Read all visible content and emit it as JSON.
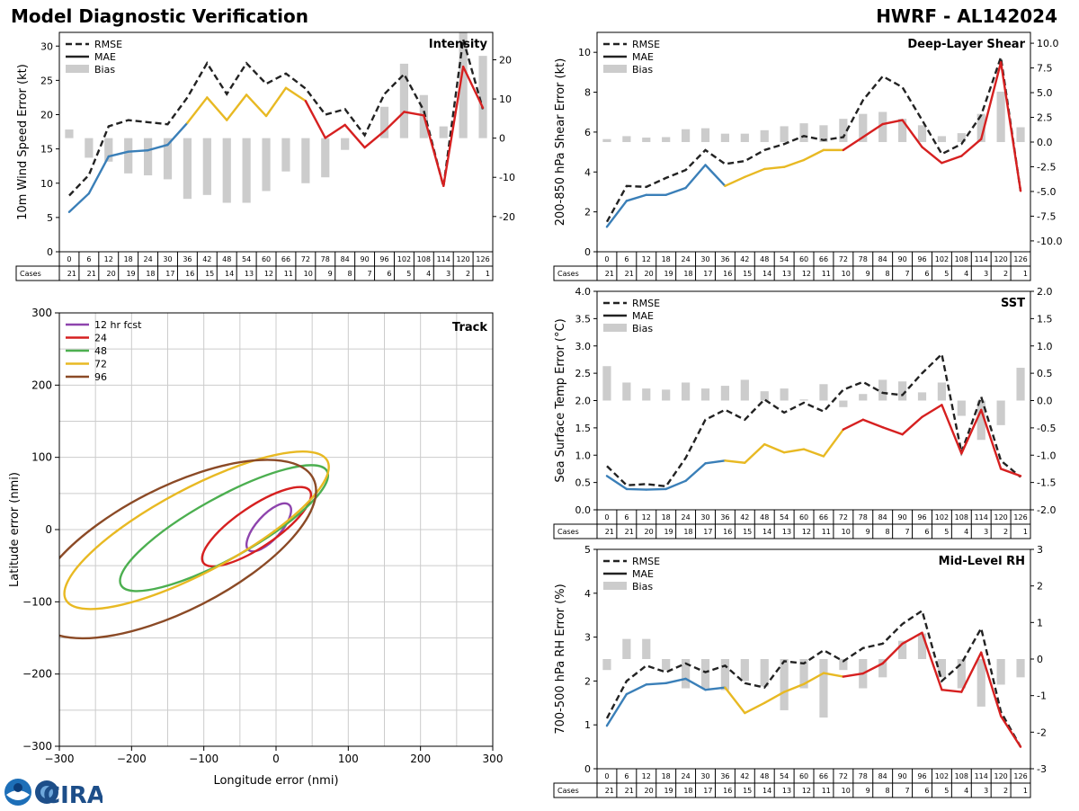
{
  "header": {
    "title": "Model Diagnostic Verification",
    "subtitle": "HWRF - AL142024"
  },
  "logo": {
    "noaa": "NOAA",
    "cira": "CIRA"
  },
  "style": {
    "rmse_color": "#222222",
    "bias_color": "#cccccc",
    "leg_rmse": "RMSE",
    "leg_mae": "MAE",
    "leg_bias": "Bias",
    "cases_label": "Cases",
    "segment_colors": [
      "#3a7fb8",
      "#e8b923",
      "#d62020"
    ]
  },
  "chart_data": [
    {
      "type": "line",
      "id": "intensity",
      "title": "Intensity",
      "ylabel": "10m Wind Speed Error (kt)",
      "ylim": [
        0,
        32
      ],
      "yticks": [
        0,
        5,
        10,
        15,
        20,
        25,
        30
      ],
      "y2lim": [
        -29,
        27
      ],
      "y2ticks": [
        -20,
        -10,
        0,
        10,
        20
      ],
      "x": [
        0,
        6,
        12,
        18,
        24,
        30,
        36,
        42,
        48,
        54,
        60,
        66,
        72,
        78,
        84,
        90,
        96,
        102,
        108,
        114,
        120,
        126
      ],
      "cases": [
        21,
        21,
        20,
        19,
        18,
        17,
        16,
        15,
        14,
        13,
        12,
        11,
        10,
        9,
        8,
        7,
        6,
        5,
        4,
        3,
        2,
        1
      ],
      "rmse": [
        8.2,
        11.2,
        18.3,
        19.2,
        18.9,
        18.6,
        22.5,
        27.5,
        23.0,
        27.5,
        24.5,
        26.0,
        23.8,
        20.0,
        20.8,
        17.0,
        23.0,
        25.9,
        20.6,
        9.5,
        31.0,
        20.8
      ],
      "mae": [
        5.8,
        8.5,
        13.9,
        14.6,
        14.8,
        15.6,
        18.8,
        22.5,
        19.2,
        22.9,
        19.8,
        23.9,
        22.0,
        16.6,
        18.5,
        15.2,
        17.6,
        20.4,
        19.9,
        9.6,
        27.0,
        21.0
      ],
      "bias": [
        2.2,
        -5.0,
        -6.0,
        -9.0,
        -9.5,
        -10.5,
        -15.5,
        -14.5,
        -16.5,
        -16.5,
        -13.5,
        -8.5,
        -11.5,
        -10.0,
        -3.0,
        0,
        8.0,
        19.0,
        11.0,
        3.0,
        27.0,
        21.0
      ]
    },
    {
      "type": "line",
      "id": "shear",
      "title": "Deep-Layer Shear",
      "ylabel": "200-850 hPa Shear Error (kt)",
      "ylim": [
        0,
        11
      ],
      "yticks": [
        0,
        2,
        4,
        6,
        8,
        10
      ],
      "y2lim": [
        -11.1,
        11.1
      ],
      "y2ticks": [
        -10.0,
        -7.5,
        -5.0,
        -2.5,
        0.0,
        2.5,
        5.0,
        7.5,
        10.0
      ],
      "x": [
        0,
        6,
        12,
        18,
        24,
        30,
        36,
        42,
        48,
        54,
        60,
        66,
        72,
        78,
        84,
        90,
        96,
        102,
        108,
        114,
        120,
        126
      ],
      "cases": [
        21,
        21,
        20,
        19,
        18,
        17,
        16,
        15,
        14,
        13,
        12,
        11,
        10,
        9,
        8,
        7,
        6,
        5,
        4,
        3,
        2,
        1
      ],
      "rmse": [
        1.5,
        3.3,
        3.25,
        3.7,
        4.1,
        5.1,
        4.4,
        4.55,
        5.1,
        5.4,
        5.8,
        5.6,
        5.75,
        7.6,
        8.8,
        8.25,
        6.6,
        4.9,
        5.4,
        6.85,
        9.75,
        3.05
      ],
      "mae": [
        1.25,
        2.55,
        2.85,
        2.85,
        3.2,
        4.35,
        3.3,
        3.75,
        4.15,
        4.25,
        4.6,
        5.1,
        5.1,
        5.75,
        6.4,
        6.6,
        5.25,
        4.45,
        4.8,
        5.65,
        9.5,
        3.05
      ],
      "bias": [
        0.3,
        0.6,
        0.45,
        0.5,
        1.3,
        1.4,
        0.85,
        0.85,
        1.2,
        1.6,
        1.9,
        1.7,
        2.35,
        2.85,
        3.05,
        2.35,
        1.7,
        0.6,
        0.9,
        2.85,
        5.1,
        1.5
      ]
    },
    {
      "type": "line",
      "id": "sst",
      "title": "SST",
      "ylabel": "Sea Surface Temp Error (°C)",
      "ylim": [
        0,
        4.0
      ],
      "yticks": [
        0.0,
        0.5,
        1.0,
        1.5,
        2.0,
        2.5,
        3.0,
        3.5,
        4.0
      ],
      "y2lim": [
        -2.0,
        2.0
      ],
      "y2ticks": [
        -2.0,
        -1.5,
        -1.0,
        -0.5,
        0.0,
        0.5,
        1.0,
        1.5,
        2.0
      ],
      "x": [
        0,
        6,
        12,
        18,
        24,
        30,
        36,
        42,
        48,
        54,
        60,
        66,
        72,
        78,
        84,
        90,
        96,
        102,
        108,
        114,
        120,
        126
      ],
      "cases": [
        21,
        21,
        20,
        19,
        18,
        17,
        16,
        15,
        14,
        13,
        12,
        11,
        10,
        9,
        8,
        7,
        6,
        5,
        4,
        3,
        2,
        1
      ],
      "rmse": [
        0.8,
        0.45,
        0.47,
        0.43,
        0.95,
        1.65,
        1.83,
        1.65,
        2.02,
        1.78,
        1.96,
        1.8,
        2.2,
        2.34,
        2.14,
        2.1,
        2.5,
        2.85,
        1.05,
        2.07,
        0.9,
        0.6
      ],
      "mae": [
        0.62,
        0.38,
        0.37,
        0.38,
        0.53,
        0.85,
        0.9,
        0.86,
        1.2,
        1.05,
        1.11,
        0.98,
        1.47,
        1.65,
        1.51,
        1.38,
        1.7,
        1.92,
        1.03,
        1.83,
        0.75,
        0.62
      ],
      "bias": [
        0.63,
        0.33,
        0.22,
        0.2,
        0.33,
        0.22,
        0.27,
        0.38,
        0.17,
        0.22,
        0.02,
        0.3,
        -0.12,
        0.12,
        0.38,
        0.35,
        0.15,
        0.33,
        -0.28,
        -0.72,
        -0.45,
        0.6
      ]
    },
    {
      "type": "line",
      "id": "rh",
      "title": "Mid-Level RH",
      "ylabel": "700-500 hPa RH Error (%)",
      "ylim": [
        0,
        5
      ],
      "yticks": [
        0,
        1,
        2,
        3,
        4,
        5
      ],
      "y2lim": [
        -3,
        3
      ],
      "y2ticks": [
        -3,
        -2,
        -1,
        0,
        1,
        2,
        3
      ],
      "x": [
        0,
        6,
        12,
        18,
        24,
        30,
        36,
        42,
        48,
        54,
        60,
        66,
        72,
        78,
        84,
        90,
        96,
        102,
        108,
        114,
        120,
        126
      ],
      "cases": [
        21,
        21,
        20,
        19,
        18,
        17,
        16,
        15,
        14,
        13,
        12,
        11,
        10,
        9,
        8,
        7,
        6,
        5,
        4,
        3,
        2,
        1
      ],
      "rmse": [
        1.15,
        2.0,
        2.35,
        2.2,
        2.4,
        2.2,
        2.35,
        1.95,
        1.85,
        2.45,
        2.4,
        2.7,
        2.45,
        2.75,
        2.85,
        3.3,
        3.6,
        2.0,
        2.4,
        3.2,
        1.3,
        0.5
      ],
      "mae": [
        0.98,
        1.7,
        1.92,
        1.95,
        2.05,
        1.8,
        1.85,
        1.27,
        1.5,
        1.75,
        1.93,
        2.18,
        2.1,
        2.17,
        2.4,
        2.85,
        3.1,
        1.8,
        1.75,
        2.65,
        1.2,
        0.5
      ],
      "bias": [
        -0.3,
        0.55,
        0.55,
        -0.3,
        -0.8,
        -0.8,
        -0.85,
        -0.6,
        -0.75,
        -1.4,
        -0.8,
        -1.6,
        -0.3,
        -0.8,
        -0.5,
        0.5,
        0.7,
        -0.5,
        -0.8,
        -1.3,
        -0.7,
        -0.5
      ]
    },
    {
      "type": "ellipse",
      "id": "track",
      "title": "Track",
      "xlabel": "Longitude error (nmi)",
      "ylabel": "Latitude error (nmi)",
      "xlim": [
        -300,
        300
      ],
      "ylim": [
        -300,
        300
      ],
      "xticks": [
        -300,
        -200,
        -100,
        0,
        100,
        200,
        300
      ],
      "yticks": [
        -300,
        -200,
        -100,
        0,
        100,
        200,
        300
      ],
      "ellipses": [
        {
          "label": "12 hr fcst",
          "color": "#8e44ad",
          "cx": -10,
          "cy": 3,
          "a": 42,
          "b": 17,
          "angle": 48
        },
        {
          "label": "24",
          "color": "#d62020",
          "cx": -27,
          "cy": 4,
          "a": 89,
          "b": 28,
          "angle": 34
        },
        {
          "label": "48",
          "color": "#4caf50",
          "cx": -72,
          "cy": 2,
          "a": 163,
          "b": 42,
          "angle": 29
        },
        {
          "label": "72",
          "color": "#e8b923",
          "cx": -110,
          "cy": -1,
          "a": 205,
          "b": 58,
          "angle": 28
        },
        {
          "label": "96",
          "color": "#8b4a26",
          "cx": -140,
          "cy": -27,
          "a": 215,
          "b": 85,
          "angle": 27
        }
      ]
    }
  ]
}
